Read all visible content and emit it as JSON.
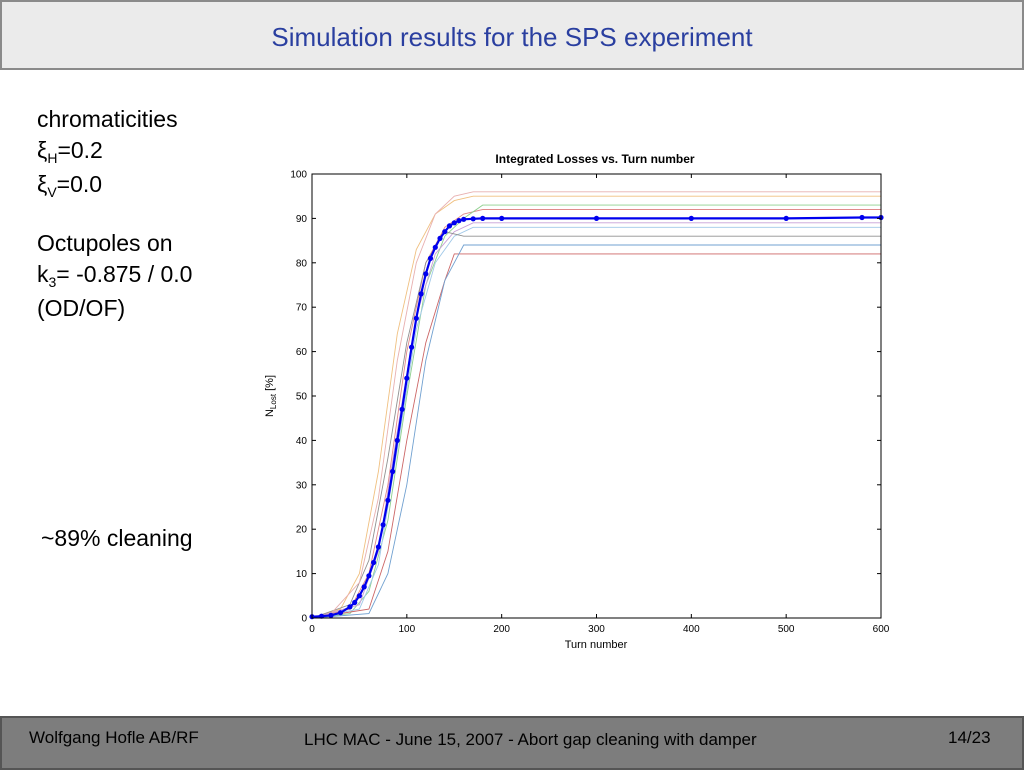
{
  "header": {
    "title": "Simulation results for the SPS experiment"
  },
  "sidebar": {
    "heading": "chromaticities",
    "xi_symbol": "ξ",
    "xi_h_sub": "H",
    "xi_h_val": "=0.2",
    "xi_v_sub": "V",
    "xi_v_val": "=0.0",
    "octupoles": "Octupoles on",
    "k_main": "k",
    "k_sub": "3",
    "k_val": "= -0.875 / 0.0",
    "od_of": "(OD/OF)",
    "cleaning": "~89% cleaning"
  },
  "footer": {
    "author": "Wolfgang Hofle AB/RF",
    "event": "LHC MAC - June 15, 2007 - Abort gap cleaning with damper",
    "page": "14/23"
  },
  "chart_data": {
    "type": "line",
    "title": "Integrated Losses vs. Turn number",
    "xlabel": "Turn number",
    "ylabel_main": "N",
    "ylabel_sub": "Lost",
    "ylabel_unit": " [%]",
    "xlim": [
      0,
      600
    ],
    "ylim": [
      0,
      100
    ],
    "xticks": [
      0,
      100,
      200,
      300,
      400,
      500,
      600
    ],
    "yticks": [
      0,
      10,
      20,
      30,
      40,
      50,
      60,
      70,
      80,
      90,
      100
    ],
    "grid": false,
    "series": [
      {
        "style": "dots",
        "color": "#0000ee",
        "x": [
          0,
          10,
          20,
          30,
          40,
          45,
          50,
          55,
          60,
          65,
          70,
          75,
          80,
          85,
          90,
          95,
          100,
          105,
          110,
          115,
          120,
          125,
          130,
          135,
          140,
          145,
          150,
          155,
          160,
          170,
          180,
          200,
          300,
          400,
          500,
          580,
          600
        ],
        "y": [
          0.3,
          0.4,
          0.6,
          1.2,
          2.5,
          3.5,
          5,
          7,
          9.5,
          12.5,
          16,
          21,
          26.5,
          33,
          40,
          47,
          54,
          61,
          67.5,
          73,
          77.5,
          81,
          83.5,
          85.5,
          87,
          88.3,
          89,
          89.5,
          89.8,
          89.9,
          90,
          90,
          90,
          90,
          90,
          90.2,
          90.2
        ]
      },
      {
        "style": "line",
        "color": "#e08a8a",
        "x": [
          0,
          40,
          60,
          80,
          100,
          120,
          140,
          160,
          180,
          600
        ],
        "y": [
          0,
          2,
          10,
          30,
          60,
          80,
          88,
          91,
          92,
          92
        ]
      },
      {
        "style": "line",
        "color": "#8fd08f",
        "x": [
          0,
          40,
          60,
          80,
          100,
          120,
          140,
          160,
          180,
          600
        ],
        "y": [
          0,
          1,
          6,
          22,
          50,
          75,
          86,
          90,
          93,
          93
        ]
      },
      {
        "style": "line",
        "color": "#f0c080",
        "x": [
          0,
          30,
          50,
          70,
          90,
          110,
          130,
          150,
          170,
          600
        ],
        "y": [
          0,
          2,
          10,
          33,
          64,
          83,
          91,
          94,
          95,
          95
        ]
      },
      {
        "style": "line",
        "color": "#a0c8e8",
        "x": [
          0,
          50,
          70,
          90,
          110,
          130,
          150,
          170,
          600
        ],
        "y": [
          0,
          2,
          12,
          38,
          65,
          80,
          86,
          88,
          88
        ]
      },
      {
        "style": "line",
        "color": "#c8a0d8",
        "x": [
          0,
          50,
          70,
          90,
          110,
          130,
          150,
          170,
          600
        ],
        "y": [
          0,
          3,
          15,
          42,
          68,
          82,
          87,
          89,
          89
        ]
      },
      {
        "style": "line",
        "color": "#cc6666",
        "x": [
          0,
          60,
          80,
          100,
          120,
          140,
          150,
          400,
          600
        ],
        "y": [
          0,
          2,
          15,
          40,
          62,
          76,
          82,
          82,
          82
        ]
      },
      {
        "style": "line",
        "color": "#70a0d0",
        "x": [
          0,
          60,
          80,
          100,
          120,
          140,
          160,
          600
        ],
        "y": [
          0,
          1,
          10,
          30,
          58,
          76,
          84,
          84
        ]
      },
      {
        "style": "line",
        "color": "#909090",
        "x": [
          0,
          40,
          60,
          80,
          100,
          120,
          140,
          160,
          600
        ],
        "y": [
          0,
          3,
          13,
          36,
          62,
          80,
          87,
          86,
          86
        ]
      },
      {
        "style": "line",
        "color": "#e8b0b0",
        "x": [
          0,
          20,
          50,
          70,
          90,
          110,
          130,
          150,
          170,
          600
        ],
        "y": [
          0,
          1,
          8,
          27,
          58,
          80,
          91,
          95,
          96,
          96
        ]
      }
    ]
  }
}
